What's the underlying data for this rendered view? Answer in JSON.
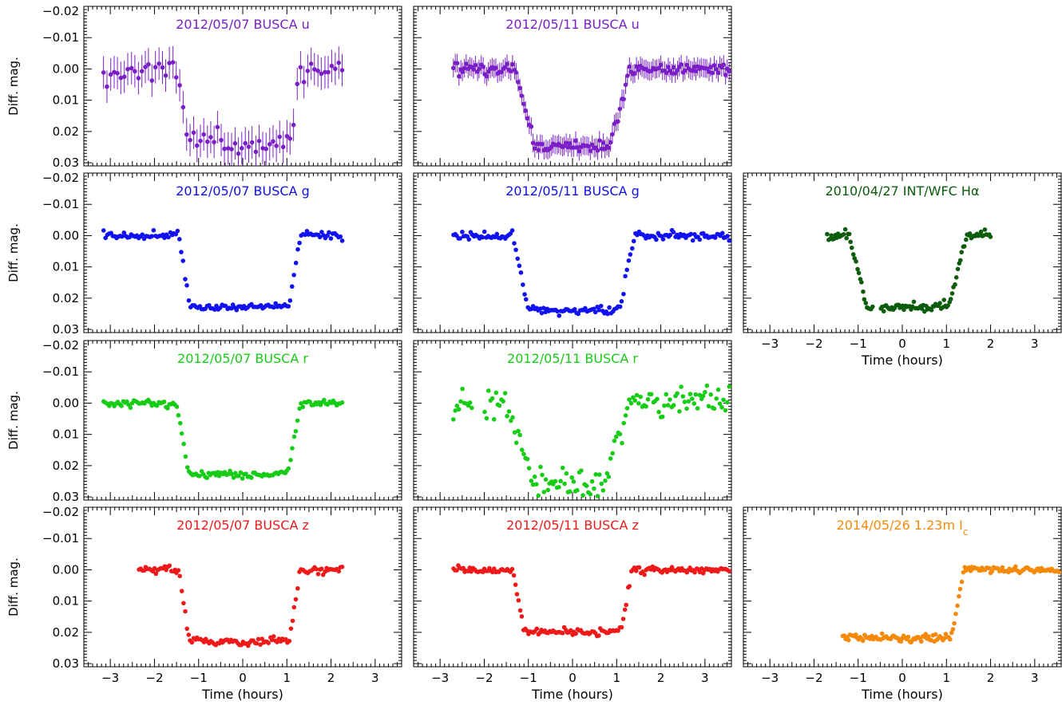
{
  "chart_data": {
    "type": "scatter",
    "xlabel": "Time (hours)",
    "ylabel": "Diff. mag.",
    "xlim": [
      -3.6,
      3.6
    ],
    "ylim": [
      -0.02,
      0.031
    ],
    "y_inverted": true,
    "xticks": [
      -3,
      -2,
      -1,
      0,
      1,
      2,
      3
    ],
    "xtick_labels": [
      "−3",
      "−2",
      "−1",
      "0",
      "1",
      "2",
      "3"
    ],
    "yticks": [
      -0.02,
      -0.01,
      0.0,
      0.01,
      0.02,
      0.03
    ],
    "ytick_labels": [
      "−0.02",
      "−0.01",
      "0.00",
      "0.01",
      "0.02",
      "0.03"
    ],
    "grid": false,
    "colors": {
      "u": "#7a1fc7",
      "g": "#1010f0",
      "r": "#16cc16",
      "z": "#ee1a1a",
      "halpha": "#0b5c0b",
      "ic": "#f58a0a"
    },
    "panels": [
      {
        "id": "p-0507-u",
        "title": "2012/05/07 BUSCA u",
        "color": "#7a1fc7",
        "error_bars": true,
        "range": [
          -3.15,
          2.25
        ],
        "t1": -1.45,
        "t2": 1.3,
        "depth": 0.024,
        "trans": 0.2,
        "noise": 0.002,
        "n": 70
      },
      {
        "id": "p-0511-u",
        "title": "2012/05/11 BUSCA u",
        "color": "#7a1fc7",
        "error_bars": true,
        "range": [
          -2.7,
          3.55
        ],
        "t1": -1.3,
        "t2": 1.3,
        "depth": 0.025,
        "trans": 0.45,
        "noise": 0.001,
        "n": 150
      },
      {
        "id": "p-0507-g",
        "title": "2012/05/07 BUSCA g",
        "color": "#1010f0",
        "error_bars": false,
        "range": [
          -3.15,
          2.25
        ],
        "t1": -1.45,
        "t2": 1.3,
        "depth": 0.023,
        "trans": 0.25,
        "noise": 0.0006,
        "n": 130
      },
      {
        "id": "p-0511-g",
        "title": "2012/05/11 BUSCA g",
        "color": "#1010f0",
        "error_bars": false,
        "range": [
          -2.7,
          3.55
        ],
        "t1": -1.35,
        "t2": 1.4,
        "depth": 0.024,
        "trans": 0.35,
        "noise": 0.0007,
        "n": 160
      },
      {
        "id": "p-0427-ha",
        "title": "2010/04/27 INT/WFC Hα",
        "color": "#0b5c0b",
        "error_bars": false,
        "range": [
          -1.7,
          2.0
        ],
        "t1": -1.2,
        "t2": 1.45,
        "depth": 0.023,
        "trans": 0.4,
        "noise": 0.0006,
        "n": 120,
        "gap": [
          -0.65,
          -0.5
        ]
      },
      {
        "id": "p-0507-r",
        "title": "2012/05/07 BUSCA r",
        "color": "#16cc16",
        "error_bars": false,
        "range": [
          -3.15,
          2.25
        ],
        "t1": -1.5,
        "t2": 1.3,
        "depth": 0.023,
        "trans": 0.28,
        "noise": 0.0006,
        "n": 135
      },
      {
        "id": "p-0511-r",
        "title": "2012/05/11 BUSCA r",
        "color": "#16cc16",
        "error_bars": false,
        "range": [
          -2.7,
          3.55
        ],
        "t1": -1.55,
        "t2": 1.35,
        "depth": 0.026,
        "trans": 0.65,
        "noise": 0.0025,
        "n": 150,
        "gap": [
          -2.25,
          -2.0
        ]
      },
      {
        "id": "p-0507-z",
        "title": "2012/05/07 BUSCA z",
        "color": "#ee1a1a",
        "error_bars": false,
        "range": [
          -2.35,
          2.25
        ],
        "t1": -1.45,
        "t2": 1.3,
        "depth": 0.023,
        "trans": 0.25,
        "noise": 0.0007,
        "n": 120
      },
      {
        "id": "p-0511-z",
        "title": "2012/05/11 BUSCA z",
        "color": "#ee1a1a",
        "error_bars": false,
        "range": [
          -2.7,
          3.55
        ],
        "t1": -1.35,
        "t2": 1.35,
        "depth": 0.02,
        "trans": 0.25,
        "noise": 0.0006,
        "n": 170
      },
      {
        "id": "p-0526-ic",
        "title": "2014/05/26 1.23m I",
        "title_sub": "c",
        "color": "#f58a0a",
        "error_bars": false,
        "range": [
          -1.35,
          3.55
        ],
        "t1": -1.75,
        "t2": 1.4,
        "depth": 0.022,
        "trans": 0.3,
        "noise": 0.0006,
        "n": 150
      }
    ]
  }
}
